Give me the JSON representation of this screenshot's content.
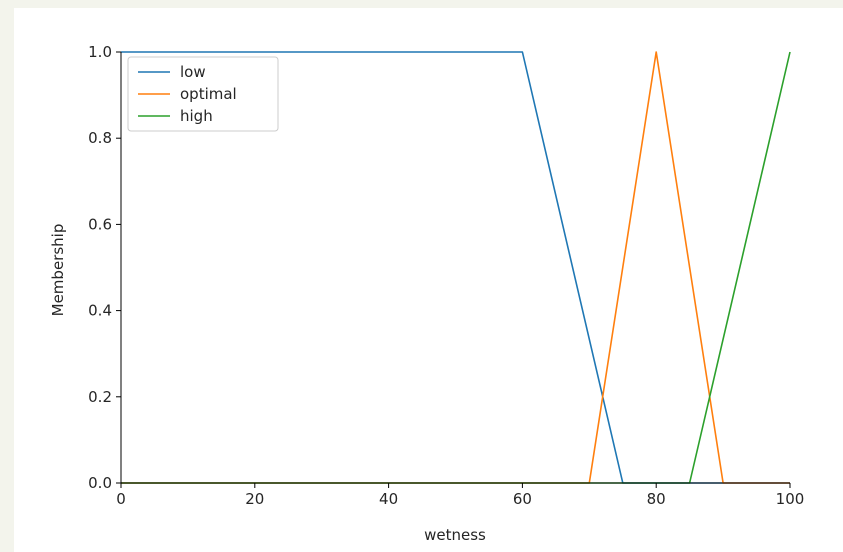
{
  "chart_data": {
    "type": "line",
    "title": "",
    "xlabel": "wetness",
    "ylabel": "Membership",
    "xlim": [
      0,
      100
    ],
    "ylim": [
      0,
      1.0
    ],
    "xticks": [
      0,
      20,
      40,
      60,
      80,
      100
    ],
    "yticks": [
      0.0,
      0.2,
      0.4,
      0.6,
      0.8,
      1.0
    ],
    "xtick_labels": [
      "0",
      "20",
      "40",
      "60",
      "80",
      "100"
    ],
    "ytick_labels": [
      "0.0",
      "0.2",
      "0.4",
      "0.6",
      "0.8",
      "1.0"
    ],
    "grid": false,
    "legend_position": "top-left",
    "series": [
      {
        "name": "low",
        "color": "#1f77b4",
        "x": [
          0,
          60,
          75,
          100
        ],
        "y": [
          1,
          1,
          0,
          0
        ]
      },
      {
        "name": "optimal",
        "color": "#ff7f0e",
        "x": [
          0,
          70,
          80,
          90,
          100
        ],
        "y": [
          0,
          0,
          1,
          0,
          0
        ]
      },
      {
        "name": "high",
        "color": "#2ca02c",
        "x": [
          0,
          85,
          100
        ],
        "y": [
          0,
          0,
          1
        ]
      }
    ]
  }
}
